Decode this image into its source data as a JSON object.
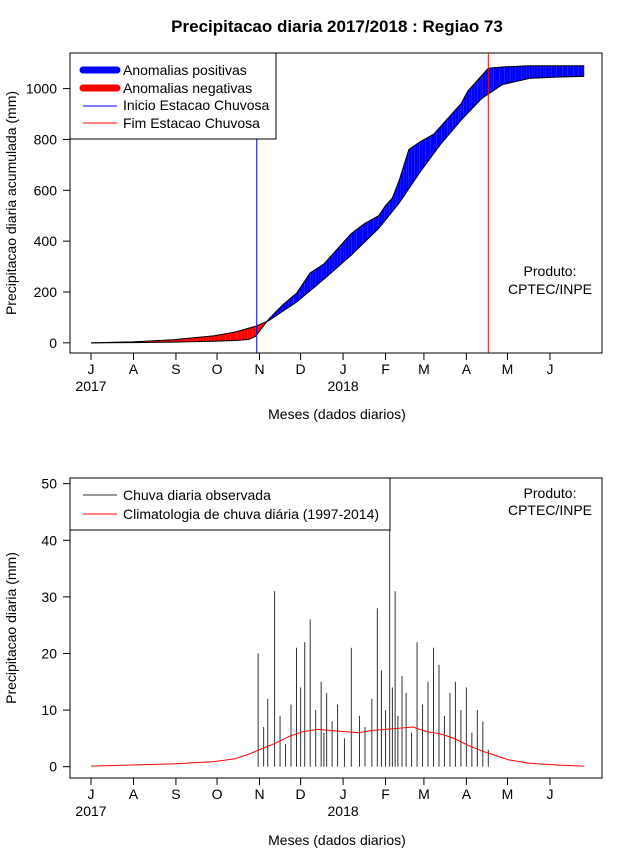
{
  "chart_data": [
    {
      "type": "area",
      "title": "Precipitacao diaria 2017/2018 : Regiao 73",
      "xlabel": "Meses (dados diarios)",
      "ylabel": "Precipitacao diaria acumulada (mm)",
      "x_tick_labels": [
        "J",
        "A",
        "S",
        "O",
        "N",
        "D",
        "J",
        "F",
        "M",
        "A",
        "M",
        "J"
      ],
      "x_year_labels": [
        "2017",
        "2018"
      ],
      "y_ticks": [
        0,
        200,
        400,
        600,
        800,
        1000
      ],
      "ylim": [
        -40,
        1140
      ],
      "legend_position": "top-left",
      "legend": [
        {
          "label": "Anomalias positivas",
          "color": "#0000ff"
        },
        {
          "label": "Anomalias negativas",
          "color": "#ff0000"
        },
        {
          "label": "Inicio Estacao Chuvosa",
          "color": "#0000ff"
        },
        {
          "label": "Fim Estacao Chuvosa",
          "color": "#ff0000"
        }
      ],
      "annotation": [
        "Produto:",
        "CPTEC/INPE"
      ],
      "rainy_season_start_day": 121,
      "rainy_season_end_day": 290,
      "series": [
        {
          "name": "climatologia acumulada",
          "x": [
            0,
            30,
            60,
            90,
            105,
            120,
            130,
            150,
            170,
            190,
            210,
            225,
            240,
            255,
            270,
            285,
            300,
            320,
            340,
            360
          ],
          "values": [
            0,
            4,
            12,
            28,
            42,
            65,
            88,
            160,
            250,
            345,
            450,
            550,
            670,
            780,
            875,
            960,
            1015,
            1040,
            1045,
            1048
          ]
        },
        {
          "name": "observada acumulada",
          "x": [
            0,
            30,
            60,
            90,
            105,
            115,
            120,
            125,
            130,
            140,
            150,
            160,
            170,
            175,
            180,
            190,
            200,
            210,
            215,
            220,
            225,
            232,
            240,
            250,
            260,
            270,
            275,
            280,
            285,
            290,
            300,
            320,
            340,
            360
          ],
          "values": [
            0,
            1,
            3,
            6,
            9,
            13,
            25,
            60,
            95,
            150,
            195,
            275,
            310,
            340,
            370,
            430,
            470,
            500,
            540,
            570,
            640,
            760,
            790,
            820,
            880,
            940,
            990,
            1020,
            1050,
            1080,
            1085,
            1090,
            1090,
            1090
          ]
        }
      ]
    },
    {
      "type": "line",
      "xlabel": "Meses (dados diarios)",
      "ylabel": "Precipitacao diaria (mm)",
      "x_tick_labels": [
        "J",
        "A",
        "S",
        "O",
        "N",
        "D",
        "J",
        "F",
        "M",
        "A",
        "M",
        "J"
      ],
      "x_year_labels": [
        "2017",
        "2018"
      ],
      "y_ticks": [
        0,
        10,
        20,
        30,
        40,
        50
      ],
      "ylim": [
        -2,
        51
      ],
      "legend_position": "top-left",
      "legend": [
        {
          "label": "Chuva diaria observada",
          "color": "#333333"
        },
        {
          "label": "Climatologia de chuva diária (1997-2014)",
          "color": "#ff0000"
        }
      ],
      "annotation": [
        "Produto:",
        "CPTEC/INPE"
      ],
      "series": [
        {
          "name": "chuva observada",
          "x": [
            122,
            126,
            129,
            134,
            138,
            142,
            146,
            150,
            153,
            156,
            160,
            164,
            168,
            170,
            172,
            176,
            180,
            185,
            190,
            196,
            200,
            205,
            209,
            212,
            215,
            218,
            220,
            222,
            224,
            227,
            230,
            234,
            238,
            242,
            246,
            250,
            254,
            258,
            262,
            266,
            270,
            274,
            278,
            282,
            286,
            290
          ],
          "values": [
            20,
            7,
            12,
            31,
            9,
            4,
            11,
            21,
            14,
            22,
            26,
            10,
            15,
            6,
            13,
            8,
            11,
            5,
            21,
            9,
            7,
            12,
            28,
            17,
            10,
            49,
            14,
            31,
            9,
            16,
            13,
            6,
            22,
            11,
            15,
            21,
            18,
            9,
            13,
            15,
            10,
            14,
            6,
            10,
            8,
            3
          ]
        },
        {
          "name": "climatologia",
          "x": [
            0,
            30,
            60,
            90,
            105,
            115,
            125,
            135,
            145,
            155,
            165,
            175,
            185,
            195,
            205,
            215,
            225,
            235,
            245,
            255,
            265,
            275,
            285,
            295,
            305,
            320,
            340,
            360
          ],
          "values": [
            0.1,
            0.3,
            0.5,
            0.9,
            1.4,
            2.2,
            3.2,
            4.2,
            5.4,
            6.2,
            6.6,
            6.4,
            6.2,
            6.0,
            6.4,
            6.6,
            6.8,
            7.0,
            6.2,
            5.8,
            5.0,
            3.8,
            2.8,
            2.0,
            1.2,
            0.6,
            0.3,
            0.1
          ]
        }
      ]
    }
  ]
}
